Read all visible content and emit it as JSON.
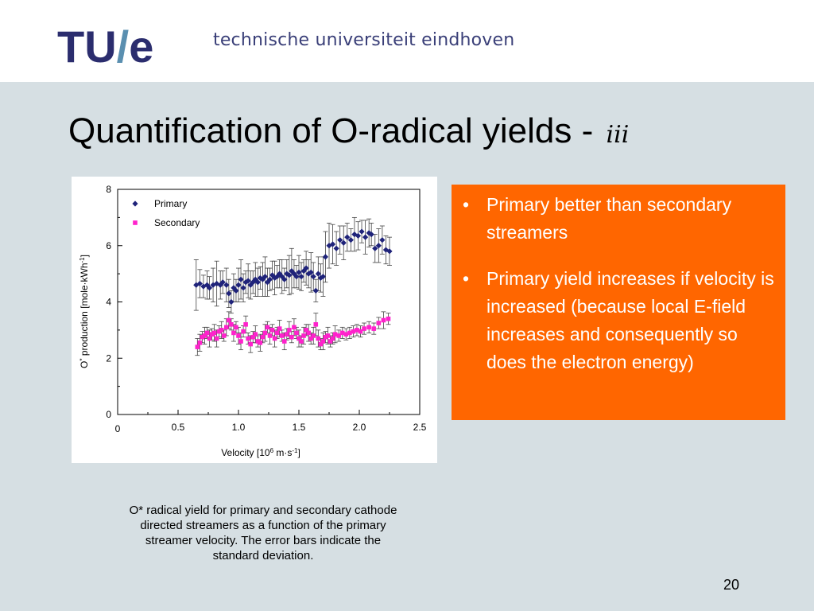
{
  "header": {
    "logo_text": "TU/e",
    "institution": "technische universiteit eindhoven"
  },
  "slide": {
    "title": "Quantification of O-radical yields  -",
    "title_suffix": "iii",
    "page_number": "20"
  },
  "bullets": [
    {
      "text": "Primary better than secondary streamers"
    },
    {
      "text": "Primary yield increases if velocity is increased (because local E-field increases and consequently so does the electron energy)"
    }
  ],
  "bullet_symbol": "•",
  "caption": "O* radical yield for primary and secondary cathode directed streamers as a function of the primary streamer velocity. The error bars indicate the standard deviation.",
  "colors": {
    "logo_blue": "#2b2d6e",
    "logo_slash": "#5a8fb0",
    "slide_background": "#d6dfe3",
    "bullet_box": "#ff6600",
    "primary_series": "#1f237a",
    "secondary_series": "#ff22cc"
  },
  "chart_data": {
    "type": "scatter",
    "title": "",
    "xlabel": "Velocity [10^6 m·s^-1]",
    "ylabel": "O* production [mole·kWh^-1]",
    "xlim": [
      0,
      2.5
    ],
    "ylim": [
      0,
      8
    ],
    "x_ticks": [
      "0",
      "0.5",
      "1.0",
      "1.5",
      "2.0",
      "2.5"
    ],
    "y_ticks": [
      "0",
      "2",
      "4",
      "6",
      "8"
    ],
    "grid": false,
    "legend_position": "top-left",
    "series": [
      {
        "name": "Primary",
        "marker": "diamond",
        "x": [
          0.65,
          0.68,
          0.71,
          0.74,
          0.76,
          0.79,
          0.82,
          0.85,
          0.87,
          0.9,
          0.92,
          0.94,
          0.96,
          0.98,
          1.0,
          1.02,
          1.04,
          1.06,
          1.08,
          1.1,
          1.12,
          1.14,
          1.16,
          1.18,
          1.2,
          1.22,
          1.24,
          1.26,
          1.28,
          1.3,
          1.32,
          1.34,
          1.36,
          1.38,
          1.4,
          1.42,
          1.44,
          1.46,
          1.48,
          1.5,
          1.52,
          1.54,
          1.56,
          1.58,
          1.6,
          1.62,
          1.64,
          1.66,
          1.68,
          1.7,
          1.72,
          1.75,
          1.78,
          1.81,
          1.84,
          1.87,
          1.9,
          1.93,
          1.96,
          1.99,
          2.02,
          2.05,
          2.08,
          2.1,
          2.13,
          2.16,
          2.19,
          2.22,
          2.25
        ],
        "y": [
          4.6,
          4.65,
          4.55,
          4.6,
          4.5,
          4.6,
          4.65,
          4.6,
          4.7,
          4.6,
          4.3,
          4.0,
          4.5,
          4.4,
          4.6,
          4.8,
          4.5,
          4.7,
          4.75,
          4.6,
          4.7,
          4.8,
          4.7,
          4.85,
          4.8,
          4.9,
          4.7,
          4.8,
          4.95,
          4.85,
          4.9,
          5.0,
          4.9,
          4.8,
          5.0,
          4.95,
          5.1,
          5.0,
          4.9,
          5.05,
          4.9,
          5.1,
          5.2,
          5.0,
          5.05,
          4.9,
          4.4,
          5.0,
          4.85,
          4.9,
          5.6,
          6.0,
          6.05,
          5.9,
          6.2,
          6.1,
          6.3,
          6.2,
          6.4,
          6.35,
          6.5,
          6.3,
          6.45,
          6.4,
          5.9,
          6.0,
          6.2,
          5.85,
          5.8
        ],
        "error": [
          0.9,
          0.5,
          0.4,
          0.5,
          0.4,
          0.6,
          0.8,
          0.5,
          0.4,
          0.6,
          0.5,
          0.4,
          0.5,
          0.4,
          0.6,
          0.7,
          0.5,
          0.4,
          0.6,
          0.5,
          0.4,
          0.6,
          0.5,
          0.4,
          0.6,
          0.7,
          0.5,
          0.4,
          0.5,
          0.6,
          0.4,
          0.5,
          0.6,
          0.4,
          0.5,
          0.7,
          0.8,
          0.5,
          0.4,
          0.6,
          0.5,
          0.4,
          0.6,
          0.5,
          0.7,
          0.5,
          0.4,
          0.6,
          0.5,
          0.7,
          0.9,
          0.8,
          0.7,
          0.6,
          0.5,
          0.6,
          0.5,
          0.4,
          0.6,
          0.5,
          0.4,
          0.6,
          0.5,
          0.4,
          0.5,
          0.6,
          0.5,
          0.5,
          0.5
        ]
      },
      {
        "name": "Secondary",
        "marker": "square",
        "x": [
          0.66,
          0.68,
          0.7,
          0.72,
          0.74,
          0.76,
          0.78,
          0.8,
          0.82,
          0.84,
          0.86,
          0.88,
          0.9,
          0.92,
          0.94,
          0.96,
          0.98,
          1.0,
          1.02,
          1.04,
          1.06,
          1.08,
          1.1,
          1.12,
          1.14,
          1.16,
          1.18,
          1.2,
          1.22,
          1.24,
          1.26,
          1.28,
          1.3,
          1.32,
          1.34,
          1.36,
          1.38,
          1.4,
          1.42,
          1.44,
          1.46,
          1.48,
          1.5,
          1.52,
          1.54,
          1.56,
          1.58,
          1.6,
          1.62,
          1.64,
          1.66,
          1.68,
          1.7,
          1.72,
          1.74,
          1.76,
          1.78,
          1.8,
          1.83,
          1.86,
          1.89,
          1.92,
          1.95,
          1.98,
          2.01,
          2.04,
          2.08,
          2.12,
          2.16,
          2.2,
          2.24
        ],
        "y": [
          2.4,
          2.55,
          2.75,
          2.8,
          2.9,
          2.7,
          2.85,
          2.9,
          2.7,
          2.95,
          3.0,
          2.8,
          3.1,
          3.35,
          3.2,
          2.9,
          3.1,
          2.8,
          2.6,
          2.95,
          3.2,
          2.7,
          2.5,
          2.75,
          2.85,
          2.6,
          2.55,
          2.75,
          2.9,
          3.1,
          2.8,
          3.0,
          2.7,
          2.9,
          3.05,
          2.8,
          2.6,
          2.85,
          3.0,
          2.75,
          3.1,
          2.9,
          2.7,
          2.6,
          2.8,
          3.0,
          2.9,
          2.7,
          2.8,
          3.2,
          2.7,
          2.5,
          2.6,
          2.75,
          2.8,
          2.6,
          2.7,
          2.85,
          2.8,
          2.9,
          2.85,
          2.9,
          2.95,
          3.0,
          2.95,
          3.05,
          3.1,
          3.05,
          3.25,
          3.35,
          3.4
        ],
        "error": [
          0.3,
          0.3,
          0.2,
          0.3,
          0.2,
          0.3,
          0.2,
          0.3,
          0.3,
          0.2,
          0.3,
          0.2,
          0.3,
          0.3,
          0.2,
          0.3,
          0.2,
          0.3,
          0.3,
          0.2,
          0.3,
          0.2,
          0.3,
          0.2,
          0.3,
          0.2,
          0.3,
          0.2,
          0.3,
          0.2,
          0.3,
          0.2,
          0.3,
          0.2,
          0.3,
          0.2,
          0.3,
          0.2,
          0.3,
          0.2,
          0.3,
          0.2,
          0.3,
          0.2,
          0.3,
          0.2,
          0.3,
          0.2,
          0.3,
          0.4,
          0.3,
          0.2,
          0.3,
          0.2,
          0.3,
          0.2,
          0.2,
          0.3,
          0.2,
          0.2,
          0.2,
          0.2,
          0.2,
          0.2,
          0.2,
          0.2,
          0.2,
          0.2,
          0.2,
          0.3,
          0.2
        ]
      }
    ]
  }
}
